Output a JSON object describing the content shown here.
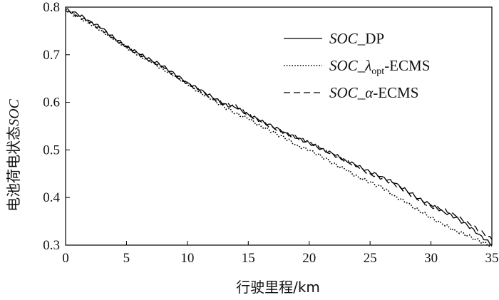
{
  "chart_data": {
    "type": "line",
    "xlabel": "行驶里程/km",
    "ylabel_cn": "电池荷电状态",
    "ylabel_var": "SOC",
    "xlim": [
      0,
      35
    ],
    "ylim": [
      0.3,
      0.8
    ],
    "xticks": [
      "0",
      "5",
      "10",
      "15",
      "20",
      "25",
      "30",
      "35"
    ],
    "yticks": [
      "0.3",
      "0.4",
      "0.5",
      "0.6",
      "0.7",
      "0.8"
    ],
    "grid": false,
    "legend_position": "top-right",
    "series": [
      {
        "name": "SOC_DP",
        "legend": {
          "var": "SOC",
          "sub": "",
          "suffix": "_DP"
        },
        "style": "solid",
        "color": "#000000",
        "x": [
          0,
          1,
          2,
          3,
          4,
          5,
          6,
          7,
          8,
          9,
          10,
          11,
          12,
          13,
          14,
          15,
          16,
          17,
          18,
          19,
          20,
          21,
          22,
          23,
          24,
          25,
          26,
          27,
          28,
          29,
          30,
          31,
          32,
          33,
          34,
          35
        ],
        "y": [
          0.795,
          0.785,
          0.771,
          0.755,
          0.735,
          0.718,
          0.702,
          0.69,
          0.676,
          0.658,
          0.642,
          0.626,
          0.612,
          0.596,
          0.588,
          0.575,
          0.561,
          0.549,
          0.537,
          0.524,
          0.515,
          0.502,
          0.491,
          0.478,
          0.466,
          0.453,
          0.444,
          0.43,
          0.415,
          0.398,
          0.384,
          0.371,
          0.358,
          0.341,
          0.322,
          0.3
        ]
      },
      {
        "name": "SOC_λopt-ECMS",
        "legend": {
          "var": "SOC",
          "sub": "opt",
          "suffix": "-ECMS",
          "lambda": "λ"
        },
        "style": "dotted",
        "color": "#000000",
        "x": [
          0,
          1,
          2,
          3,
          4,
          5,
          6,
          7,
          8,
          9,
          10,
          11,
          12,
          13,
          14,
          15,
          16,
          17,
          18,
          19,
          20,
          21,
          22,
          23,
          24,
          25,
          26,
          27,
          28,
          29,
          30,
          31,
          32,
          33,
          34,
          35
        ],
        "y": [
          0.795,
          0.781,
          0.765,
          0.75,
          0.732,
          0.716,
          0.7,
          0.685,
          0.67,
          0.655,
          0.638,
          0.622,
          0.606,
          0.591,
          0.577,
          0.565,
          0.551,
          0.538,
          0.525,
          0.51,
          0.499,
          0.487,
          0.472,
          0.458,
          0.444,
          0.432,
          0.421,
          0.404,
          0.389,
          0.373,
          0.358,
          0.343,
          0.331,
          0.32,
          0.308,
          0.298
        ]
      },
      {
        "name": "SOC_α-ECMS",
        "legend": {
          "var": "SOC",
          "sub": "",
          "suffix": "-ECMS",
          "alpha": "α"
        },
        "style": "dashed",
        "color": "#000000",
        "x": [
          0,
          1,
          2,
          3,
          4,
          5,
          6,
          7,
          8,
          9,
          10,
          11,
          12,
          13,
          14,
          15,
          16,
          17,
          18,
          19,
          20,
          21,
          22,
          23,
          24,
          25,
          26,
          27,
          28,
          29,
          30,
          31,
          32,
          33,
          34,
          35
        ],
        "y": [
          0.792,
          0.78,
          0.768,
          0.752,
          0.734,
          0.716,
          0.701,
          0.687,
          0.674,
          0.656,
          0.64,
          0.625,
          0.61,
          0.597,
          0.594,
          0.574,
          0.56,
          0.548,
          0.536,
          0.526,
          0.517,
          0.503,
          0.49,
          0.478,
          0.464,
          0.45,
          0.44,
          0.428,
          0.412,
          0.394,
          0.381,
          0.376,
          0.362,
          0.349,
          0.33,
          0.312
        ]
      }
    ]
  }
}
